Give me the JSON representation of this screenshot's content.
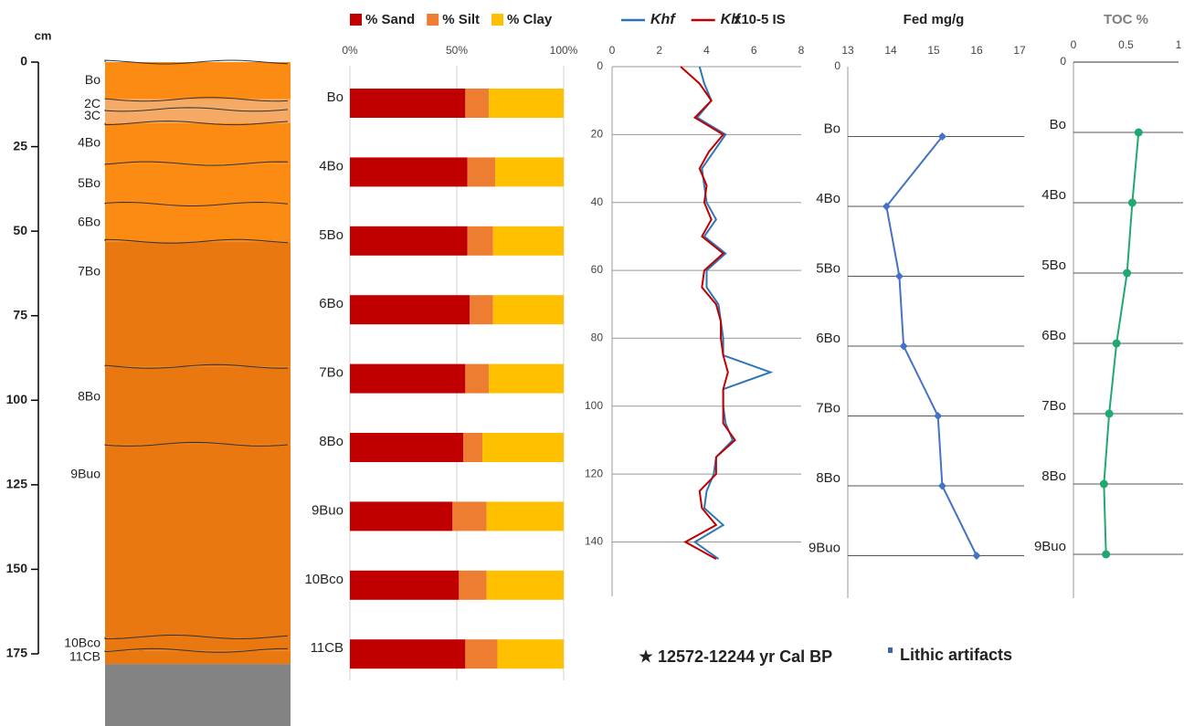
{
  "chart_data": [
    {
      "type": "profile",
      "axis_label": "cm",
      "ylim": [
        0,
        175
      ],
      "yticks": [
        0,
        25,
        50,
        75,
        100,
        125,
        150,
        175
      ],
      "horizons": [
        {
          "name": "Bo",
          "top": 0,
          "color": "#fb8b12"
        },
        {
          "name": "2C",
          "top": 11,
          "color": "#f4a965"
        },
        {
          "name": "3C",
          "top": 14,
          "color": "#f4a965"
        },
        {
          "name": "4Bo",
          "top": 18,
          "color": "#fb8b12"
        },
        {
          "name": "5Bo",
          "top": 30,
          "color": "#fb8b12"
        },
        {
          "name": "6Bo",
          "top": 42,
          "color": "#fb8b12"
        },
        {
          "name": "7Bo",
          "top": 53,
          "color": "#e8780f"
        },
        {
          "name": "8Bo",
          "top": 90,
          "color": "#e8780f"
        },
        {
          "name": "9Buo",
          "top": 113,
          "color": "#e8780f"
        },
        {
          "name": "10Bco",
          "top": 170,
          "color": "#e8780f"
        },
        {
          "name": "11CB",
          "top": 174,
          "color": "#e8780f"
        }
      ],
      "bedrock_top": 178,
      "bedrock_color": "#838383"
    },
    {
      "type": "bar",
      "orientation": "horizontal",
      "stacked": true,
      "categories": [
        "Bo",
        "4Bo",
        "5Bo",
        "6Bo",
        "7Bo",
        "8Bo",
        "9Buo",
        "10Bco",
        "11CB"
      ],
      "series": [
        {
          "name": "% Sand",
          "color": "#c00000",
          "values": [
            54,
            55,
            55,
            56,
            54,
            53,
            48,
            51,
            54
          ]
        },
        {
          "name": "% Silt",
          "color": "#ed7d31",
          "values": [
            11,
            13,
            12,
            11,
            11,
            9,
            16,
            13,
            15
          ]
        },
        {
          "name": "% Clay",
          "color": "#ffc000",
          "values": [
            35,
            32,
            33,
            33,
            35,
            38,
            36,
            36,
            31
          ]
        }
      ],
      "xlim": [
        0,
        100
      ],
      "xticks": [
        {
          "value": 0,
          "label": "0%"
        },
        {
          "value": 50,
          "label": "50%"
        },
        {
          "value": 100,
          "label": "100%"
        }
      ],
      "grid": true
    },
    {
      "type": "line",
      "unit": "x10-5 IS",
      "y": [
        0,
        5,
        10,
        15,
        20,
        25,
        30,
        35,
        40,
        45,
        50,
        55,
        60,
        65,
        70,
        75,
        80,
        85,
        90,
        95,
        100,
        105,
        110,
        115,
        120,
        125,
        130,
        135,
        140,
        145
      ],
      "series": [
        {
          "name": "Khf",
          "color": "#2e75b6",
          "values": [
            3.7,
            3.9,
            4.2,
            3.6,
            4.8,
            4.3,
            3.8,
            3.9,
            4.0,
            4.4,
            3.9,
            4.8,
            4.0,
            4.0,
            4.5,
            4.6,
            4.7,
            4.7,
            6.7,
            4.7,
            4.7,
            4.8,
            5.1,
            4.4,
            4.3,
            4.0,
            3.9,
            4.7,
            3.5,
            4.5
          ]
        },
        {
          "name": "Klf",
          "color": "#c00000",
          "values": [
            2.9,
            3.7,
            4.2,
            3.5,
            4.7,
            4.1,
            3.7,
            4.0,
            3.9,
            4.2,
            3.8,
            4.7,
            3.9,
            3.8,
            4.4,
            4.6,
            4.6,
            4.7,
            4.9,
            4.7,
            4.7,
            4.7,
            5.2,
            4.4,
            4.4,
            3.7,
            3.8,
            4.4,
            3.1,
            4.4
          ]
        }
      ],
      "xlim": [
        0,
        8
      ],
      "xticks": [
        0,
        2,
        4,
        6,
        8
      ],
      "ylim": [
        0,
        156
      ],
      "yticks": [
        0,
        20,
        40,
        60,
        80,
        100,
        120,
        140
      ],
      "grid": true
    },
    {
      "type": "line",
      "title": "Fed mg/g",
      "categories": [
        "0",
        "Bo",
        "4Bo",
        "5Bo",
        "6Bo",
        "7Bo",
        "8Bo",
        "9Buo"
      ],
      "values": [
        null,
        15.2,
        13.9,
        14.2,
        14.3,
        15.1,
        15.2,
        16.0
      ],
      "color": "#4472c4",
      "marker": "diamond",
      "xlim": [
        13,
        17
      ],
      "xticks": [
        13,
        14,
        15,
        16,
        17
      ],
      "grid": true
    },
    {
      "type": "line",
      "title": "TOC %",
      "categories": [
        "0",
        "Bo",
        "4Bo",
        "5Bo",
        "6Bo",
        "7Bo",
        "8Bo",
        "9Buo"
      ],
      "values": [
        null,
        0.62,
        0.56,
        0.51,
        0.41,
        0.34,
        0.29,
        0.31
      ],
      "color": "#1fa870",
      "marker": "circle",
      "xlim": [
        0,
        1
      ],
      "xticks": [
        0,
        0.5,
        1
      ],
      "grid": true,
      "top_border": true
    }
  ],
  "notes": [
    "12572-12244 yr Cal BP",
    "Lithic artifacts"
  ]
}
